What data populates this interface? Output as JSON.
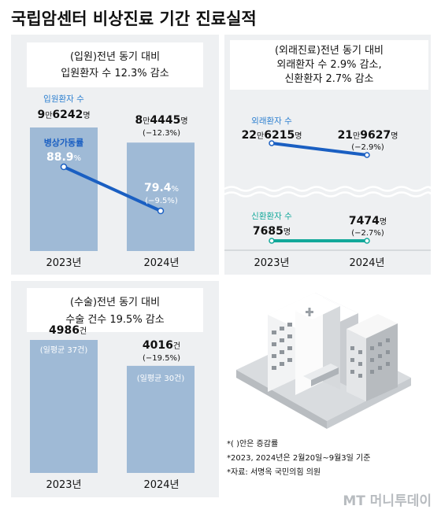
{
  "title": "국립암센터 비상진료 기간 진료실적",
  "colors": {
    "panel": "#eef0f2",
    "bar": "#9fbad6",
    "blue": "#1a5fc2",
    "teal": "#12a89a",
    "note_blue": "#2c7fd0"
  },
  "inpatient": {
    "header_line1": "(입원)전년 동기 대비",
    "header_line2": "입원환자 수 12.3% 감소",
    "patients_label": "입원환자 수",
    "bed_label": "병상가동률",
    "val_2023_big1": "9",
    "val_2023_small1": "만",
    "val_2023_big2": "6242",
    "val_2023_small2": "명",
    "val_2024_big1": "8",
    "val_2024_small1": "만",
    "val_2024_big2": "4445",
    "val_2024_small2": "명",
    "val_2024_change": "(−12.3%)",
    "bed_2023": "88.9",
    "bed_unit": "%",
    "bed_2024": "79.4",
    "bed_2024_change": "(−9.5%)"
  },
  "outpatient": {
    "header_line1": "(외래진료)전년 동기 대비",
    "header_line2": "외래환자 수 2.9% 감소,",
    "header_line3": "신환환자 2.7% 감소",
    "outpatients_label": "외래환자 수",
    "out_2023_big1": "22",
    "out_2023_small1": "만",
    "out_2023_big2": "6215",
    "out_2023_small2": "명",
    "out_2024_big1": "21",
    "out_2024_small1": "만",
    "out_2024_big2": "9627",
    "out_2024_small2": "명",
    "out_2024_change": "(−2.9%)",
    "new_label": "신환환자 수",
    "new_2023": "7685",
    "new_2024": "7474",
    "unit_person": "명",
    "new_2024_change": "(−2.7%)"
  },
  "surgery": {
    "header_line1": "(수술)전년 동기 대비",
    "header_line2": "수술 건수 19.5% 감소",
    "s_2023": "4986",
    "s_2024": "4016",
    "unit": "건",
    "s_2024_change": "(−19.5%)",
    "daily_2023": "(일평균 37건)",
    "daily_2024": "(일평균 30건)"
  },
  "year_labels": [
    "2023년",
    "2024년"
  ],
  "notes": [
    "*( )안은 증감률",
    "*2023, 2024년은 2월20일~9월3일 기준",
    "*자료: 서명옥 국민의힘 의원"
  ],
  "brand": "MT 머니투데이",
  "chart_data": [
    {
      "type": "bar",
      "title": "(입원)전년 동기 대비 입원환자 수 12.3% 감소",
      "categories": [
        "2023년",
        "2024년"
      ],
      "series": [
        {
          "name": "입원환자 수",
          "values": [
            96242,
            84445
          ]
        }
      ],
      "change_pct": [
        null,
        -12.3
      ]
    },
    {
      "type": "line",
      "title": "(입원)전년 동기 대비 입원환자 수 12.3% 감소",
      "categories": [
        "2023년",
        "2024년"
      ],
      "series": [
        {
          "name": "병상가동률",
          "values": [
            88.9,
            79.4
          ]
        }
      ],
      "change_pct": [
        null,
        -9.5
      ]
    },
    {
      "type": "line",
      "title": "(외래진료)전년 동기 대비 외래환자 수 2.9% 감소, 신환환자 2.7% 감소",
      "categories": [
        "2023년",
        "2024년"
      ],
      "series": [
        {
          "name": "외래환자 수",
          "values": [
            226215,
            219627
          ]
        },
        {
          "name": "신환환자 수",
          "values": [
            7685,
            7474
          ]
        }
      ],
      "change_pct": {
        "외래환자 수": -2.9,
        "신환환자 수": -2.7
      }
    },
    {
      "type": "bar",
      "title": "(수술)전년 동기 대비 수술 건수 19.5% 감소",
      "categories": [
        "2023년",
        "2024년"
      ],
      "series": [
        {
          "name": "수술 건수",
          "values": [
            4986,
            4016
          ]
        }
      ],
      "change_pct": [
        null,
        -19.5
      ],
      "daily_average": [
        37,
        30
      ]
    }
  ]
}
